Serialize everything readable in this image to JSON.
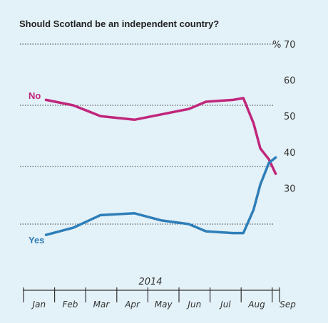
{
  "chart_data": {
    "type": "line",
    "title": "Should Scotland be an independent country?",
    "x": [
      "Jan",
      "Feb",
      "Mar",
      "Apr",
      "May",
      "Jun",
      "Jul",
      "Aug",
      "Aug",
      "Aug",
      "Sep",
      "Sep",
      "Sep"
    ],
    "x_positions": [
      0.2,
      1.0,
      1.8,
      2.8,
      3.6,
      4.4,
      4.9,
      5.7,
      6.0,
      6.3,
      6.5,
      6.75,
      6.95
    ],
    "categories": [
      "Jan",
      "Feb",
      "Mar",
      "Apr",
      "May",
      "Jun",
      "Jul",
      "Aug",
      "Sep"
    ],
    "xlabel": "2014",
    "ylim": [
      10,
      70
    ],
    "yticks": [
      30,
      40,
      50,
      60,
      70
    ],
    "gridlines": [
      20,
      36,
      53,
      70
    ],
    "unit": "%",
    "series": [
      {
        "name": "No",
        "color": "#c0267c",
        "values": [
          54.5,
          53,
          50,
          49,
          50.5,
          52,
          54,
          54.5,
          55,
          48,
          41,
          38,
          34
        ]
      },
      {
        "name": "Yes",
        "color": "#2e7eb8",
        "values": [
          17,
          19,
          22.5,
          23,
          21,
          20,
          18,
          17.5,
          17.5,
          24,
          31,
          37,
          38.5
        ]
      }
    ]
  }
}
